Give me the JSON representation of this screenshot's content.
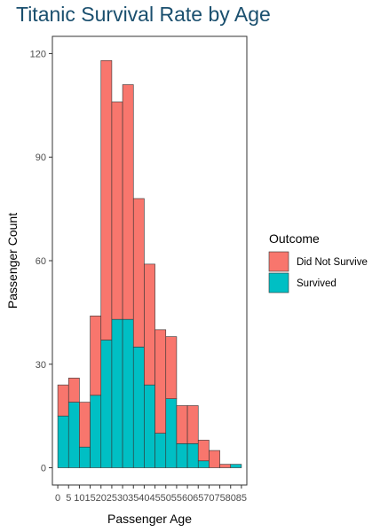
{
  "chart_data": {
    "type": "bar",
    "stacked": true,
    "title": "Titanic Survival Rate by Age",
    "xlabel": "Passenger Age",
    "ylabel": "Passenger Count",
    "bin_width": 5,
    "x": [
      0,
      5,
      10,
      15,
      20,
      25,
      30,
      35,
      40,
      45,
      50,
      55,
      60,
      65,
      70,
      75,
      80
    ],
    "x_ticks": [
      "0",
      "5",
      "10",
      "15",
      "20",
      "25",
      "30",
      "35",
      "40",
      "45",
      "50",
      "55",
      "60",
      "65",
      "70",
      "75",
      "80",
      "85"
    ],
    "ylim": [
      -5,
      125
    ],
    "y_ticks": [
      0,
      30,
      60,
      90,
      120
    ],
    "series": [
      {
        "name": "Did Not Survive",
        "color": "#f8766d",
        "values": [
          9,
          7,
          13,
          23,
          81,
          63,
          68,
          43,
          35,
          30,
          18,
          11,
          11,
          6,
          5,
          1,
          0
        ]
      },
      {
        "name": "Survived",
        "color": "#00bfc4",
        "values": [
          15,
          19,
          6,
          21,
          37,
          43,
          43,
          35,
          24,
          10,
          20,
          7,
          7,
          2,
          0,
          0,
          1
        ]
      }
    ],
    "legend": {
      "title": "Outcome",
      "position": "right"
    },
    "grid": false
  }
}
